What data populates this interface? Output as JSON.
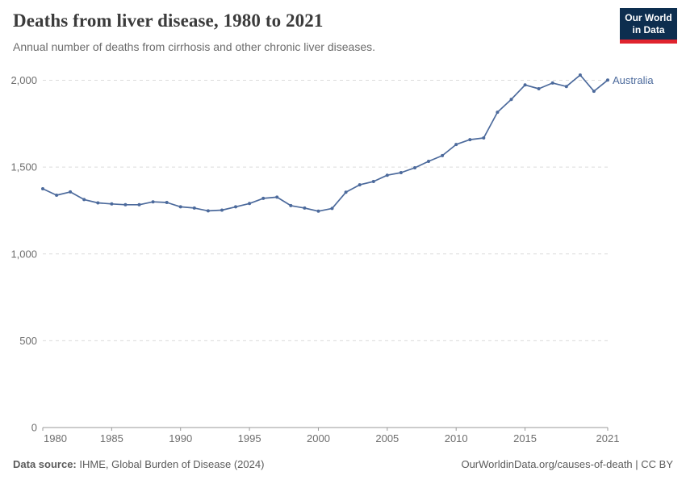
{
  "header": {
    "title": "Deaths from liver disease, 1980 to 2021",
    "subtitle": "Annual number of deaths from cirrhosis and other chronic liver diseases.",
    "logo": {
      "line1": "Our World",
      "line2": "in Data",
      "bg_color": "#0d2e4f",
      "accent_color": "#e0232e"
    }
  },
  "chart_data": {
    "type": "line",
    "title": "Deaths from liver disease, 1980 to 2021",
    "xlabel": "",
    "ylabel": "",
    "xlim": [
      1980,
      2021
    ],
    "ylim": [
      0,
      2000
    ],
    "grid": "horizontal-dashed",
    "legend_position": "end-of-line-label",
    "x_ticks": [
      1980,
      1985,
      1990,
      1995,
      2000,
      2005,
      2010,
      2015,
      2021
    ],
    "y_ticks": [
      0,
      500,
      1000,
      1500,
      2000
    ],
    "y_tick_labels": [
      "0",
      "500",
      "1,000",
      "1,500",
      "2,000"
    ],
    "x": [
      1980,
      1981,
      1982,
      1983,
      1984,
      1985,
      1986,
      1987,
      1988,
      1989,
      1990,
      1991,
      1992,
      1993,
      1994,
      1995,
      1996,
      1997,
      1998,
      1999,
      2000,
      2001,
      2002,
      2003,
      2004,
      2005,
      2006,
      2007,
      2008,
      2009,
      2010,
      2011,
      2012,
      2013,
      2014,
      2015,
      2016,
      2017,
      2018,
      2019,
      2020,
      2021
    ],
    "series": [
      {
        "name": "Australia",
        "color": "#4c6a9c",
        "values": [
          1375,
          1338,
          1357,
          1313,
          1294,
          1288,
          1283,
          1283,
          1300,
          1296,
          1271,
          1264,
          1248,
          1252,
          1271,
          1290,
          1320,
          1327,
          1278,
          1264,
          1246,
          1262,
          1355,
          1398,
          1417,
          1453,
          1468,
          1496,
          1533,
          1566,
          1630,
          1658,
          1668,
          1816,
          1890,
          1973,
          1951,
          1984,
          1964,
          2030,
          1937,
          2001
        ]
      }
    ],
    "colors": {
      "gridline": "#dcdcdc",
      "axis": "#9a9a9a",
      "tick_text": "#6e6e6e"
    }
  },
  "footer": {
    "source_label": "Data source:",
    "source_value": " IHME, Global Burden of Disease (2024)",
    "credit": "OurWorldinData.org/causes-of-death | CC BY"
  }
}
